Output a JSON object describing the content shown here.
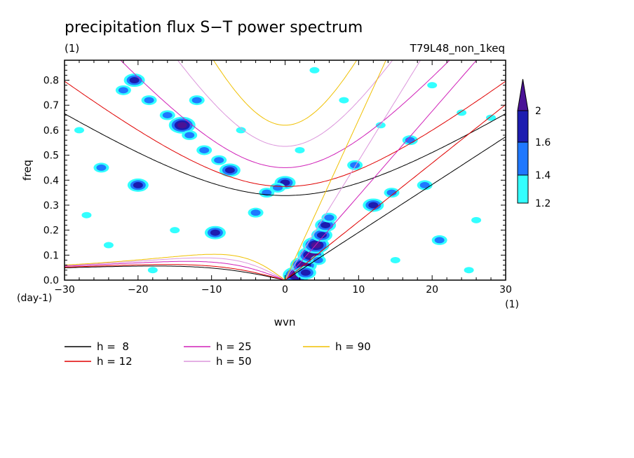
{
  "figure": {
    "title": "precipitation flux S−T power spectrum",
    "subtitle_left": "(1)",
    "subtitle_right": "T79L48_non_1keq"
  },
  "chart_data": {
    "type": "heatmap",
    "title": "precipitation flux S−T power spectrum",
    "xlabel": "wvn",
    "ylabel": "freq",
    "x_unit_label": "(1)",
    "y_unit_label": "(day-1)",
    "xlim": [
      -30,
      30
    ],
    "ylim": [
      0,
      0.88
    ],
    "x_ticks": [
      -30,
      -20,
      -10,
      0,
      10,
      20,
      30
    ],
    "x_tick_labels": [
      "−30",
      "−20",
      "−10",
      "0",
      "10",
      "20",
      "30"
    ],
    "y_ticks": [
      0,
      0.1,
      0.2,
      0.3,
      0.4,
      0.5,
      0.6,
      0.7,
      0.8
    ],
    "y_tick_labels": [
      "0.0",
      "0.1",
      "0.2",
      "0.3",
      "0.4",
      "0.5",
      "0.6",
      "0.7",
      "0.8"
    ],
    "contour_levels": [
      1.2,
      1.4,
      1.6,
      2
    ],
    "contour_level_labels": [
      "1.2",
      "1.4",
      "1.6",
      "2"
    ],
    "contour_colors": [
      "#33ffff",
      "#1f78ff",
      "#1c1cb0",
      "#4a1296"
    ],
    "dispersion_curves": [
      {
        "name": "h =  8",
        "h": 8,
        "color": "#000000"
      },
      {
        "name": "h = 12",
        "h": 12,
        "color": "#e00000"
      },
      {
        "name": "h = 25",
        "h": 25,
        "color": "#d020b8"
      },
      {
        "name": "h = 50",
        "h": 50,
        "color": "#dc96dc"
      },
      {
        "name": "h = 90",
        "h": 90,
        "color": "#f0c000"
      }
    ],
    "legend_position": "bottom",
    "blobs": [
      {
        "x": 1.5,
        "y": 0.02,
        "level": 4
      },
      {
        "x": 2.5,
        "y": 0.06,
        "level": 4
      },
      {
        "x": 3.5,
        "y": 0.1,
        "level": 4
      },
      {
        "x": 4.2,
        "y": 0.14,
        "level": 4
      },
      {
        "x": 5.0,
        "y": 0.18,
        "level": 3
      },
      {
        "x": 5.5,
        "y": 0.22,
        "level": 3
      },
      {
        "x": 6.0,
        "y": 0.25,
        "level": 2
      },
      {
        "x": 2.8,
        "y": 0.03,
        "level": 3
      },
      {
        "x": 4.5,
        "y": 0.08,
        "level": 2
      },
      {
        "x": 0.0,
        "y": 0.39,
        "level": 3
      },
      {
        "x": -1.0,
        "y": 0.37,
        "level": 2
      },
      {
        "x": -2.5,
        "y": 0.35,
        "level": 2
      },
      {
        "x": -7.5,
        "y": 0.44,
        "level": 3
      },
      {
        "x": -9.0,
        "y": 0.48,
        "level": 2
      },
      {
        "x": -11.0,
        "y": 0.52,
        "level": 2
      },
      {
        "x": -14.0,
        "y": 0.62,
        "level": 4
      },
      {
        "x": -13.0,
        "y": 0.58,
        "level": 2
      },
      {
        "x": -16.0,
        "y": 0.66,
        "level": 2
      },
      {
        "x": -18.5,
        "y": 0.72,
        "level": 2
      },
      {
        "x": -20.5,
        "y": 0.8,
        "level": 3
      },
      {
        "x": -22.0,
        "y": 0.76,
        "level": 2
      },
      {
        "x": -12.0,
        "y": 0.72,
        "level": 2
      },
      {
        "x": -9.5,
        "y": 0.19,
        "level": 3
      },
      {
        "x": -4.0,
        "y": 0.27,
        "level": 2
      },
      {
        "x": -20.0,
        "y": 0.38,
        "level": 3
      },
      {
        "x": -25.0,
        "y": 0.45,
        "level": 2
      },
      {
        "x": -28.0,
        "y": 0.6,
        "level": 1
      },
      {
        "x": 12.0,
        "y": 0.3,
        "level": 3
      },
      {
        "x": 14.5,
        "y": 0.35,
        "level": 2
      },
      {
        "x": 9.5,
        "y": 0.46,
        "level": 2
      },
      {
        "x": 17.0,
        "y": 0.56,
        "level": 2
      },
      {
        "x": 19.0,
        "y": 0.38,
        "level": 2
      },
      {
        "x": 21.0,
        "y": 0.16,
        "level": 2
      },
      {
        "x": 24.0,
        "y": 0.67,
        "level": 1
      },
      {
        "x": 28.0,
        "y": 0.65,
        "level": 1
      },
      {
        "x": 8.0,
        "y": 0.72,
        "level": 1
      },
      {
        "x": 4.0,
        "y": 0.84,
        "level": 1
      },
      {
        "x": -27.0,
        "y": 0.26,
        "level": 1
      },
      {
        "x": -15.0,
        "y": 0.2,
        "level": 1
      },
      {
        "x": -18.0,
        "y": 0.04,
        "level": 1
      },
      {
        "x": 25.0,
        "y": 0.04,
        "level": 1
      },
      {
        "x": 15.0,
        "y": 0.08,
        "level": 1
      },
      {
        "x": 26.0,
        "y": 0.24,
        "level": 1
      },
      {
        "x": -6.0,
        "y": 0.6,
        "level": 1
      },
      {
        "x": 13.0,
        "y": 0.62,
        "level": 1
      },
      {
        "x": -24.0,
        "y": 0.14,
        "level": 1
      },
      {
        "x": 2.0,
        "y": 0.52,
        "level": 1
      },
      {
        "x": 20.0,
        "y": 0.78,
        "level": 1
      }
    ]
  },
  "legend": {
    "entries": [
      {
        "label": "h =  8",
        "color": "#000000"
      },
      {
        "label": "h = 12",
        "color": "#e00000"
      },
      {
        "label": "h = 25",
        "color": "#d020b8"
      },
      {
        "label": "h = 50",
        "color": "#dc96dc"
      },
      {
        "label": "h = 90",
        "color": "#f0c000"
      }
    ]
  }
}
